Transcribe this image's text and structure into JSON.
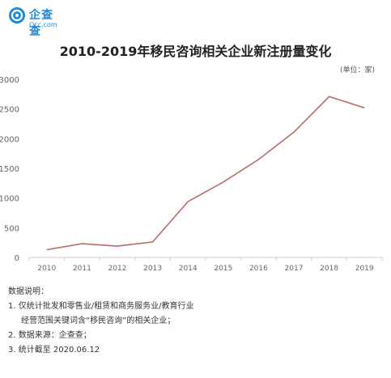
{
  "logo": {
    "name_cn": "企查查",
    "name_en": "Qcc.com",
    "icon": "qcc-logo-icon",
    "color": "#1a8ae5"
  },
  "title": "2010-2019年移民咨询相关企业新注册量变化",
  "unit": "(单位：家)",
  "chart_data": {
    "type": "line",
    "title": "2010-2019年移民咨询相关企业新注册量变化",
    "xlabel": "",
    "ylabel": "",
    "x": [
      "2010",
      "2011",
      "2012",
      "2013",
      "2014",
      "2015",
      "2016",
      "2017",
      "2018",
      "2019"
    ],
    "series": [
      {
        "values": [
          130,
          230,
          190,
          260,
          940,
          1270,
          1650,
          2110,
          2710,
          2520
        ],
        "color": "#b86b66"
      }
    ],
    "yticks": [
      0,
      500,
      1000,
      1500,
      2000,
      2500,
      3000
    ],
    "ylim": [
      0,
      3000
    ],
    "grid": false
  },
  "notes": {
    "heading": "数据说明：",
    "line1": "1. 仅统计批发和零售业/租赁和商务服务业/教育行业",
    "line1b": "经营范围关键词含“移民咨询”的相关企业；",
    "line2": "2. 数据来源：企查查；",
    "line3": "3. 统计截至 2020.06.12"
  }
}
